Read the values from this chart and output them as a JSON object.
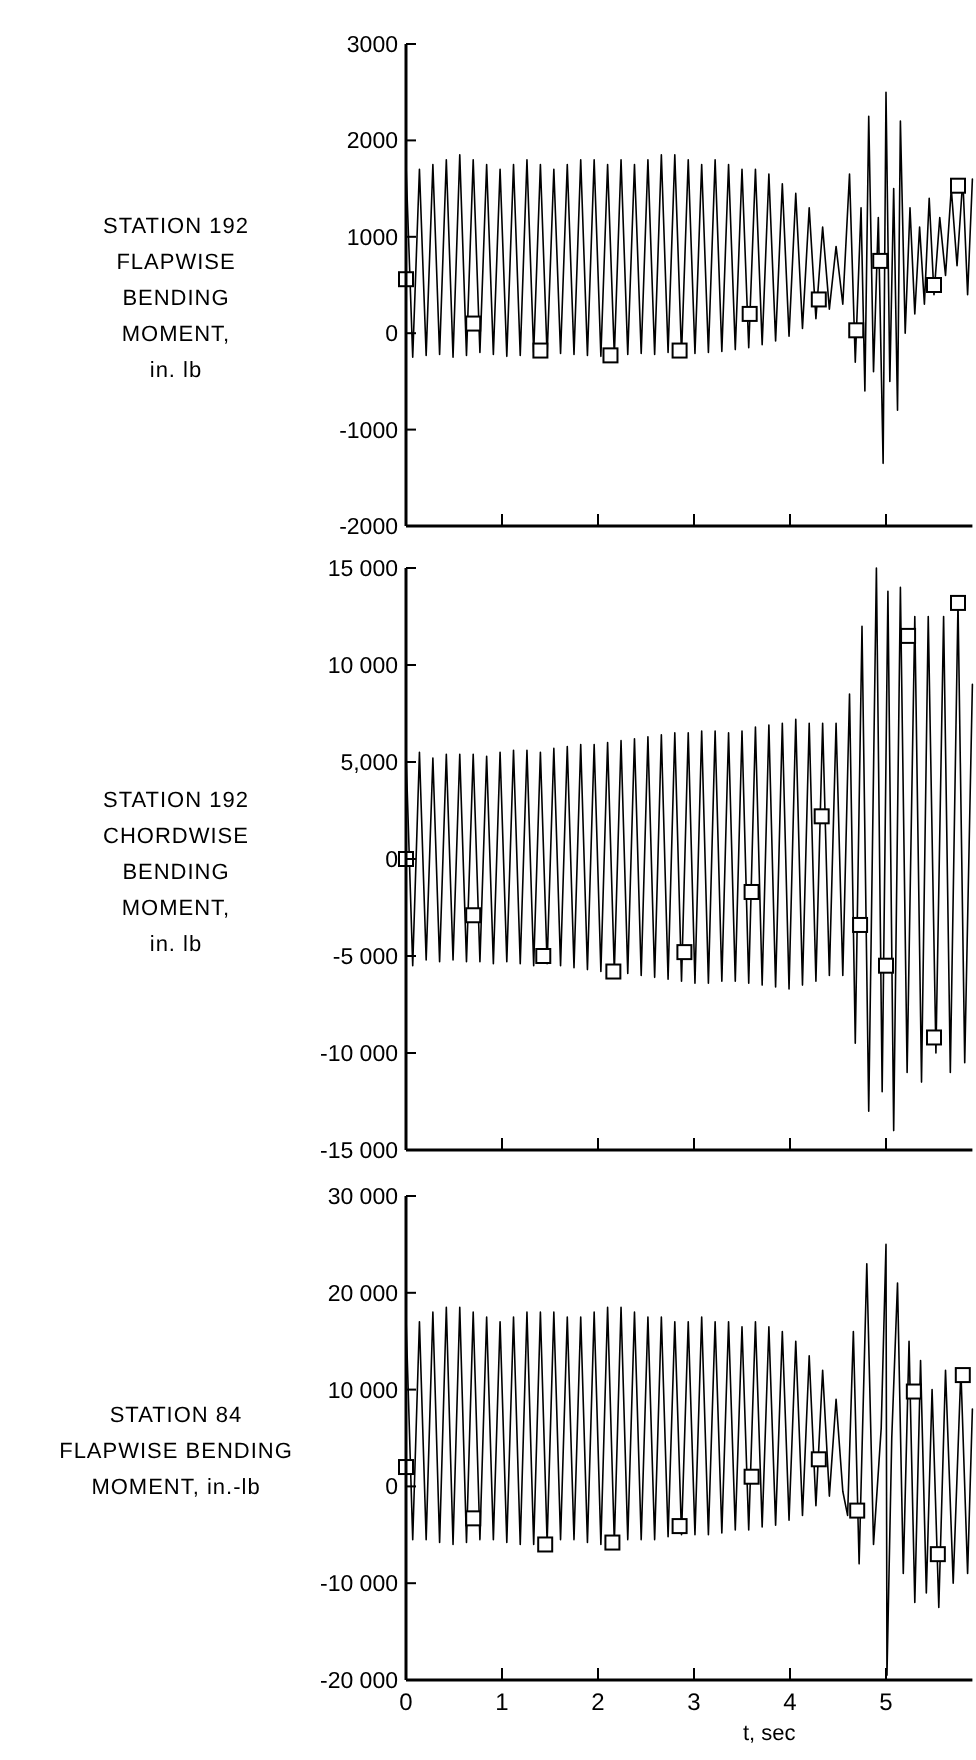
{
  "chart_data": [
    {
      "type": "line",
      "ylabel": "STATION 192\nFLAPWISE\nBENDING\nMOMENT,\nin. lb",
      "xlim": [
        0,
        5.9
      ],
      "xticks": [
        {
          "value": 0,
          "label": null
        },
        {
          "value": 1,
          "label": null
        },
        {
          "value": 2,
          "label": null
        },
        {
          "value": 3,
          "label": null
        },
        {
          "value": 4,
          "label": null
        },
        {
          "value": 5,
          "label": null
        }
      ],
      "ylim": [
        -2000,
        3000
      ],
      "yticks": [
        -2000,
        -1000,
        0,
        1000,
        2000,
        3000
      ],
      "tick_labels": "y",
      "series": [
        {
          "color": "#000000",
          "marker": "none",
          "x": [
            0,
            0.07,
            0.14,
            0.21,
            0.28,
            0.35,
            0.42,
            0.49,
            0.56,
            0.63,
            0.7,
            0.77,
            0.84,
            0.91,
            0.98,
            1.05,
            1.12,
            1.19,
            1.26,
            1.33,
            1.4,
            1.47,
            1.54,
            1.61,
            1.68,
            1.75,
            1.82,
            1.89,
            1.96,
            2.03,
            2.1,
            2.17,
            2.24,
            2.31,
            2.38,
            2.45,
            2.52,
            2.59,
            2.66,
            2.73,
            2.8,
            2.87,
            2.94,
            3.01,
            3.08,
            3.15,
            3.22,
            3.29,
            3.36,
            3.43,
            3.5,
            3.57,
            3.64,
            3.71,
            3.78,
            3.85,
            3.92,
            3.99,
            4.06,
            4.13,
            4.2,
            4.27,
            4.34,
            4.41,
            4.48,
            4.55,
            4.62,
            4.68,
            4.74,
            4.78,
            4.82,
            4.87,
            4.92,
            4.97,
            5.0,
            5.04,
            5.08,
            5.12,
            5.15,
            5.2,
            5.25,
            5.3,
            5.35,
            5.4,
            5.45,
            5.5,
            5.56,
            5.62,
            5.68,
            5.74,
            5.8,
            5.85,
            5.9
          ],
          "values": [
            1750,
            -250,
            1700,
            -230,
            1750,
            -220,
            1800,
            -250,
            1850,
            -230,
            1800,
            -200,
            1750,
            -220,
            1700,
            -240,
            1750,
            -230,
            1800,
            -200,
            1750,
            -230,
            1700,
            -210,
            1750,
            -220,
            1800,
            -230,
            1800,
            -240,
            1750,
            -230,
            1800,
            -220,
            1750,
            -210,
            1800,
            -220,
            1850,
            -200,
            1850,
            -220,
            1800,
            -210,
            1750,
            -200,
            1800,
            -190,
            1750,
            -170,
            1700,
            -150,
            1700,
            -120,
            1650,
            -80,
            1550,
            -30,
            1450,
            50,
            1300,
            150,
            1100,
            250,
            900,
            300,
            1650,
            -300,
            1300,
            -600,
            2250,
            -400,
            1200,
            -1350,
            2500,
            -500,
            1500,
            -800,
            2200,
            0,
            1300,
            200,
            1100,
            300,
            1400,
            400,
            1200,
            600,
            1500,
            700,
            1600,
            400,
            1600
          ]
        },
        {
          "type": "scatter",
          "color": "#000000",
          "marker": "square",
          "x": [
            0,
            0.7,
            1.4,
            2.13,
            2.85,
            3.58,
            4.3,
            4.69,
            4.94,
            5.5,
            5.75
          ],
          "values": [
            560,
            100,
            -180,
            -230,
            -180,
            200,
            350,
            30,
            750,
            500,
            1530
          ]
        }
      ]
    },
    {
      "type": "line",
      "ylabel": "STATION 192\nCHORDWISE\nBENDING\nMOMENT,\nin. lb",
      "xlim": [
        0,
        5.9
      ],
      "xticks": [
        {
          "value": 0,
          "label": null
        },
        {
          "value": 1,
          "label": null
        },
        {
          "value": 2,
          "label": null
        },
        {
          "value": 3,
          "label": null
        },
        {
          "value": 4,
          "label": null
        },
        {
          "value": 5,
          "label": null
        }
      ],
      "ylim": [
        -15000,
        15000
      ],
      "yticks": [
        {
          "value": -15000,
          "label": "-15 000"
        },
        {
          "value": -10000,
          "label": "-10 000"
        },
        {
          "value": -5000,
          "label": "-5 000"
        },
        0,
        {
          "value": 5000,
          "label": "5,000"
        },
        {
          "value": 10000,
          "label": "10 000"
        },
        {
          "value": 15000,
          "label": "15 000"
        }
      ],
      "tick_labels": "y",
      "series": [
        {
          "color": "#000000",
          "marker": "none",
          "x": [
            0,
            0.07,
            0.14,
            0.21,
            0.28,
            0.35,
            0.42,
            0.49,
            0.56,
            0.63,
            0.7,
            0.77,
            0.84,
            0.91,
            0.98,
            1.05,
            1.12,
            1.19,
            1.26,
            1.33,
            1.4,
            1.47,
            1.54,
            1.61,
            1.68,
            1.75,
            1.82,
            1.89,
            1.96,
            2.03,
            2.1,
            2.17,
            2.24,
            2.31,
            2.38,
            2.45,
            2.52,
            2.59,
            2.66,
            2.73,
            2.8,
            2.87,
            2.94,
            3.01,
            3.08,
            3.15,
            3.22,
            3.29,
            3.36,
            3.43,
            3.5,
            3.57,
            3.64,
            3.71,
            3.78,
            3.85,
            3.92,
            3.99,
            4.06,
            4.13,
            4.2,
            4.27,
            4.34,
            4.41,
            4.48,
            4.55,
            4.62,
            4.68,
            4.75,
            4.82,
            4.9,
            4.96,
            5.02,
            5.08,
            5.15,
            5.22,
            5.3,
            5.37,
            5.44,
            5.52,
            5.6,
            5.67,
            5.75,
            5.82,
            5.9
          ],
          "values": [
            5500,
            -5500,
            5500,
            -5200,
            5200,
            -5300,
            5400,
            -5200,
            5400,
            -5300,
            5400,
            -5300,
            5300,
            -5400,
            5500,
            -5300,
            5600,
            -5400,
            5600,
            -5500,
            5500,
            -5400,
            5700,
            -5500,
            5800,
            -5600,
            5900,
            -5700,
            5900,
            -5800,
            6000,
            -5800,
            6100,
            -5900,
            6200,
            -6000,
            6300,
            -6100,
            6400,
            -6200,
            6500,
            -6300,
            6500,
            -6400,
            6600,
            -6400,
            6600,
            -6300,
            6500,
            -6300,
            6600,
            -6400,
            6800,
            -6500,
            6900,
            -6600,
            7000,
            -6700,
            7200,
            -6500,
            7000,
            -6300,
            7000,
            -6000,
            7000,
            -6000,
            8500,
            -9500,
            12000,
            -13000,
            15000,
            -12000,
            13800,
            -14000,
            14000,
            -11000,
            12500,
            -11500,
            12500,
            -10000,
            12500,
            -11000,
            13200,
            -10500,
            9000
          ]
        },
        {
          "type": "scatter",
          "color": "#000000",
          "marker": "square",
          "x": [
            0,
            0.7,
            1.43,
            2.16,
            2.9,
            3.6,
            4.33,
            4.73,
            5.0,
            5.23,
            5.5,
            5.75
          ],
          "values": [
            0,
            -2900,
            -5000,
            -5800,
            -4800,
            -1700,
            2200,
            -3400,
            -5500,
            11500,
            -9200,
            13200
          ]
        }
      ]
    },
    {
      "type": "line",
      "ylabel": "STATION 84\nFLAPWISE BENDING\nMOMENT, in.-lb",
      "xlabel": "t, sec",
      "xlim": [
        0,
        5.9
      ],
      "xticks": [
        0,
        1,
        2,
        3,
        4,
        5
      ],
      "ylim": [
        -20000,
        30000
      ],
      "yticks": [
        {
          "value": -20000,
          "label": "-20 000"
        },
        {
          "value": -10000,
          "label": "-10 000"
        },
        0,
        {
          "value": 10000,
          "label": "10 000"
        },
        {
          "value": 20000,
          "label": "20 000"
        },
        {
          "value": 30000,
          "label": "30 000"
        }
      ],
      "series": [
        {
          "color": "#000000",
          "marker": "none",
          "x": [
            0,
            0.07,
            0.14,
            0.21,
            0.28,
            0.35,
            0.42,
            0.49,
            0.56,
            0.63,
            0.7,
            0.77,
            0.84,
            0.91,
            0.98,
            1.05,
            1.12,
            1.19,
            1.26,
            1.33,
            1.4,
            1.47,
            1.54,
            1.61,
            1.68,
            1.75,
            1.82,
            1.89,
            1.96,
            2.03,
            2.1,
            2.17,
            2.24,
            2.31,
            2.38,
            2.45,
            2.52,
            2.59,
            2.66,
            2.73,
            2.8,
            2.87,
            2.94,
            3.01,
            3.08,
            3.15,
            3.22,
            3.29,
            3.36,
            3.43,
            3.5,
            3.57,
            3.64,
            3.71,
            3.78,
            3.85,
            3.92,
            3.99,
            4.06,
            4.13,
            4.2,
            4.27,
            4.34,
            4.41,
            4.48,
            4.55,
            4.6,
            4.66,
            4.72,
            4.8,
            4.87,
            4.95,
            5.0,
            5.01,
            5.06,
            5.12,
            5.18,
            5.24,
            5.3,
            5.36,
            5.42,
            5.48,
            5.55,
            5.62,
            5.7,
            5.78,
            5.85,
            5.9
          ],
          "values": [
            17500,
            -5500,
            17000,
            -5500,
            18000,
            -5800,
            18500,
            -6000,
            18500,
            -5800,
            18000,
            -5500,
            17500,
            -5500,
            17000,
            -5800,
            17500,
            -6000,
            18000,
            -6000,
            18000,
            -5800,
            18000,
            -5500,
            17500,
            -5500,
            17500,
            -5800,
            18000,
            -6000,
            18500,
            -5800,
            18500,
            -5500,
            18000,
            -5500,
            17500,
            -5500,
            17500,
            -5200,
            17000,
            -5000,
            17000,
            -5000,
            17500,
            -5000,
            17000,
            -4800,
            17000,
            -4500,
            16500,
            -4500,
            17000,
            -4200,
            16500,
            -4000,
            16000,
            -3500,
            15000,
            -3000,
            13500,
            -2000,
            12000,
            -1000,
            9000,
            -500,
            -3000,
            16000,
            -8000,
            23000,
            -6000,
            6000,
            25000,
            -19500,
            5000,
            21000,
            -9000,
            15000,
            -12000,
            13000,
            -11000,
            10000,
            -12500,
            12000,
            -10000,
            12000,
            -9000,
            8000
          ]
        },
        {
          "type": "scatter",
          "color": "#000000",
          "marker": "square",
          "x": [
            0,
            0.7,
            1.45,
            2.15,
            2.85,
            3.6,
            4.3,
            4.7,
            5.29,
            5.54,
            5.8
          ],
          "values": [
            2000,
            -3300,
            -6000,
            -5800,
            -4100,
            1000,
            2800,
            -2500,
            9800,
            -7000,
            11500
          ]
        }
      ]
    }
  ]
}
